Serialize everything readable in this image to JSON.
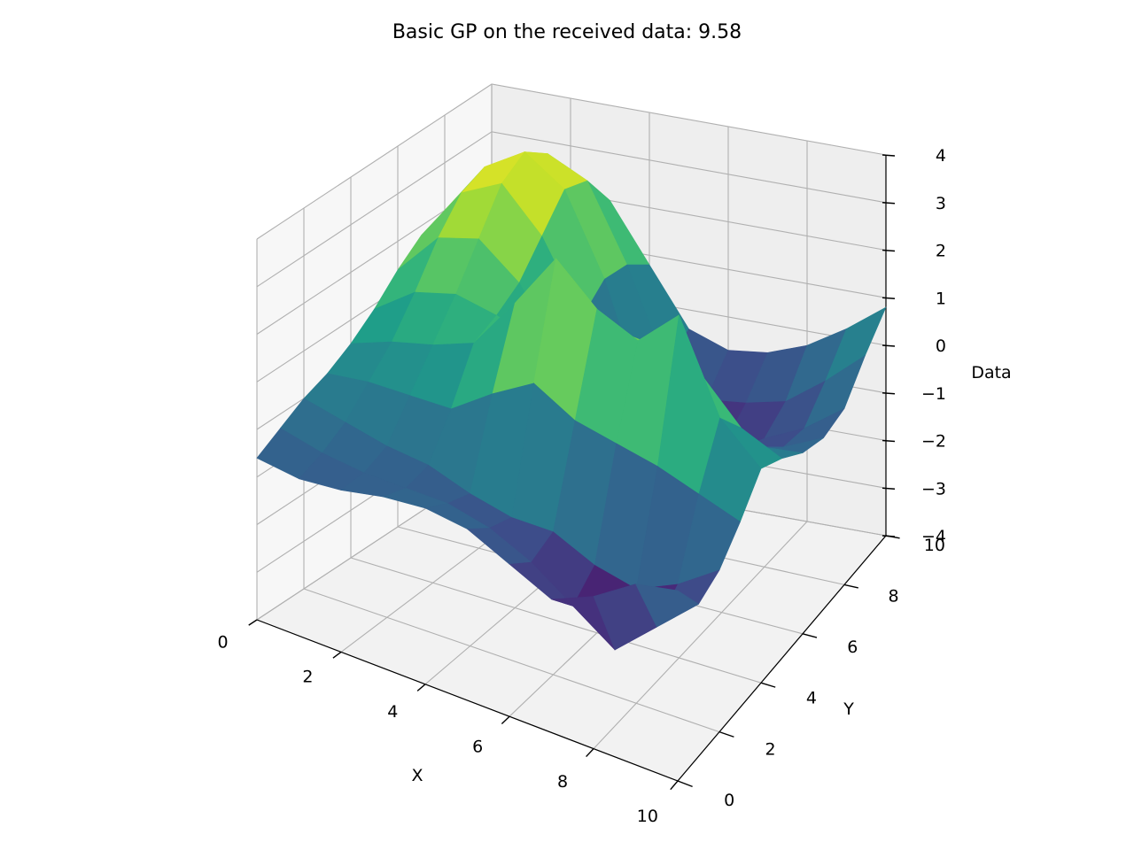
{
  "chart_data": {
    "type": "surface",
    "title": "Basic GP on the received data: 9.58",
    "xlabel": "X",
    "ylabel": "Y",
    "zlabel": "Data",
    "xlim": [
      0,
      10
    ],
    "ylim": [
      0,
      10
    ],
    "zlim": [
      -4,
      4
    ],
    "xticks": [
      "0",
      "2",
      "4",
      "6",
      "8",
      "10"
    ],
    "yticks": [
      "0",
      "2",
      "4",
      "6",
      "8",
      "10"
    ],
    "zticks": [
      "−4",
      "−3",
      "−2",
      "−1",
      "0",
      "1",
      "2",
      "3",
      "4"
    ],
    "grid": true,
    "colormap": "viridis",
    "x": [
      0,
      1,
      2,
      3,
      4,
      5,
      6,
      7,
      8,
      9,
      10
    ],
    "y": [
      0,
      1,
      2,
      3,
      4,
      5,
      6,
      7,
      8,
      9,
      10
    ],
    "z": [
      [
        -0.6,
        -0.3,
        0.0,
        0.2,
        0.5,
        0.9,
        1.4,
        1.8,
        2.0,
        1.6,
        0.9
      ],
      [
        -0.7,
        -0.5,
        -0.2,
        0.3,
        0.8,
        1.5,
        2.3,
        2.9,
        3.1,
        2.7,
        1.8
      ],
      [
        -0.6,
        -0.6,
        -0.4,
        0.3,
        1.0,
        1.7,
        2.5,
        3.3,
        3.6,
        3.2,
        2.2
      ],
      [
        -0.4,
        -0.6,
        -0.5,
        0.3,
        1.3,
        1.5,
        1.8,
        2.4,
        3.0,
        2.8,
        2.0
      ],
      [
        -0.3,
        -0.6,
        -0.8,
        0.9,
        2.4,
        1.2,
        0.5,
        0.9,
        1.3,
        1.2,
        0.8
      ],
      [
        -0.4,
        -0.8,
        -1.0,
        1.4,
        3.6,
        1.8,
        -0.6,
        -1.2,
        -1.1,
        -0.8,
        -0.4
      ],
      [
        -0.8,
        -1.2,
        -1.0,
        0.9,
        2.8,
        1.9,
        -0.4,
        -1.6,
        -1.8,
        -1.3,
        -0.7
      ],
      [
        -1.2,
        -1.8,
        -1.4,
        0.7,
        2.4,
        1.8,
        -0.2,
        -1.3,
        -1.6,
        -1.2,
        -0.6
      ],
      [
        -0.8,
        -2.4,
        -1.6,
        0.5,
        3.2,
        1.5,
        -0.1,
        -1.0,
        -1.3,
        -1.0,
        -0.3
      ],
      [
        -0.2,
        -1.6,
        -1.2,
        0.2,
        1.3,
        0.6,
        -0.3,
        -0.8,
        -0.9,
        -0.4,
        0.2
      ],
      [
        0.0,
        -0.8,
        -0.6,
        -0.1,
        0.5,
        0.2,
        -0.2,
        -0.4,
        -0.3,
        0.3,
        0.8
      ]
    ]
  }
}
